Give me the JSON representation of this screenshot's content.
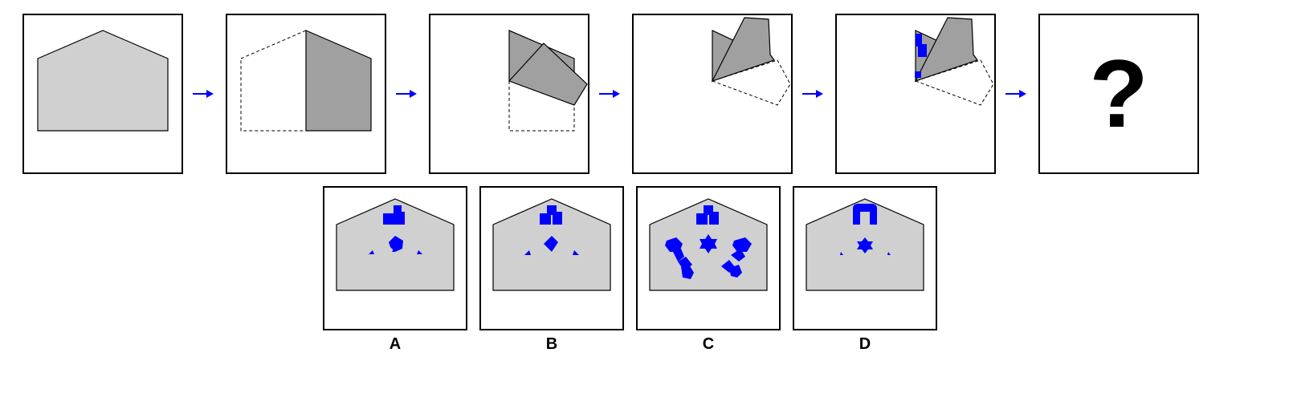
{
  "sequence": {
    "arrow_color": "#0000ff",
    "paper_fill": "#d0d0d0",
    "folded_fill": "#a0a0a0",
    "hole_color": "#0000ff",
    "unknown_symbol": "?"
  },
  "options": [
    {
      "label": "A"
    },
    {
      "label": "B"
    },
    {
      "label": "C"
    },
    {
      "label": "D"
    }
  ]
}
